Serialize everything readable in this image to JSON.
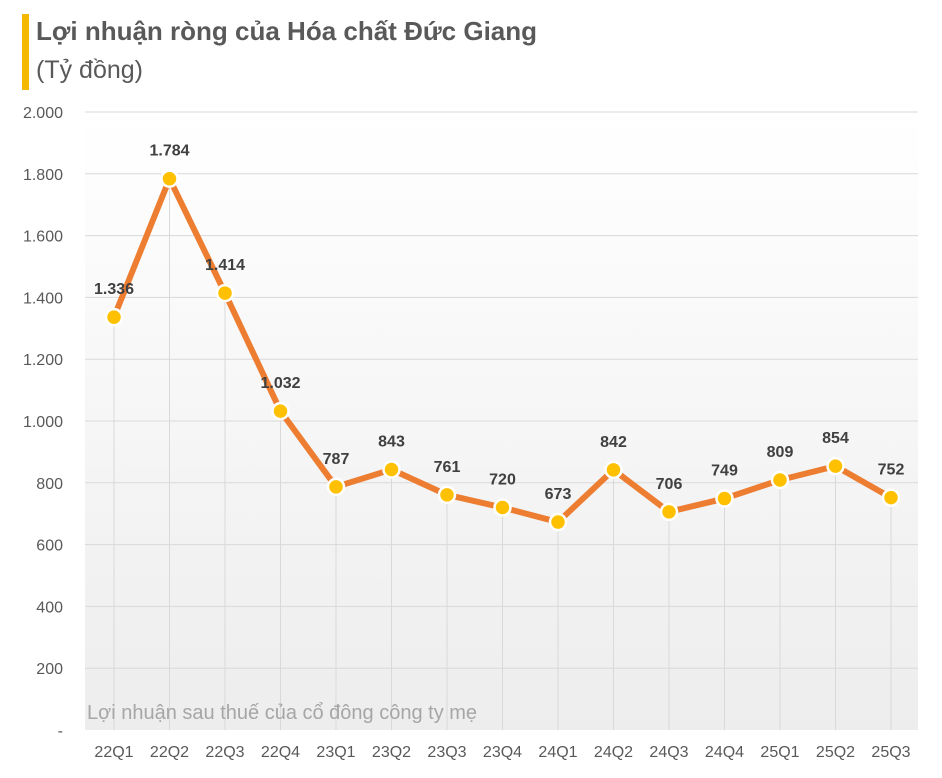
{
  "chart_data": {
    "type": "line",
    "title": "Lợi nhuận ròng của Hóa chất Đức Giang",
    "subtitle": "(Tỷ đồng)",
    "categories": [
      "22Q1",
      "22Q2",
      "22Q3",
      "22Q4",
      "23Q1",
      "23Q2",
      "23Q3",
      "23Q4",
      "24Q1",
      "24Q2",
      "24Q3",
      "24Q4",
      "25Q1",
      "25Q2",
      "25Q3"
    ],
    "series": [
      {
        "name": "Lợi nhuận sau thuế của cổ đông công ty mẹ",
        "values": [
          1336,
          1784,
          1414,
          1032,
          787,
          843,
          761,
          720,
          673,
          842,
          706,
          749,
          809,
          854,
          752
        ],
        "value_labels": [
          "1.336",
          "1.784",
          "1.414",
          "1.032",
          "787",
          "843",
          "761",
          "720",
          "673",
          "842",
          "706",
          "749",
          "809",
          "854",
          "752"
        ]
      }
    ],
    "ylim": [
      0,
      2000
    ],
    "ytick_labels": [
      "-",
      "200",
      "400",
      "600",
      "800",
      "1.000",
      "1.200",
      "1.400",
      "1.600",
      "1.800",
      "2.000"
    ],
    "grid": true,
    "colors": {
      "line": "#ED7D31",
      "marker": "#FFC000",
      "accent": "#F5B800",
      "grid": "#D9D9D9",
      "text": "#595959"
    }
  }
}
